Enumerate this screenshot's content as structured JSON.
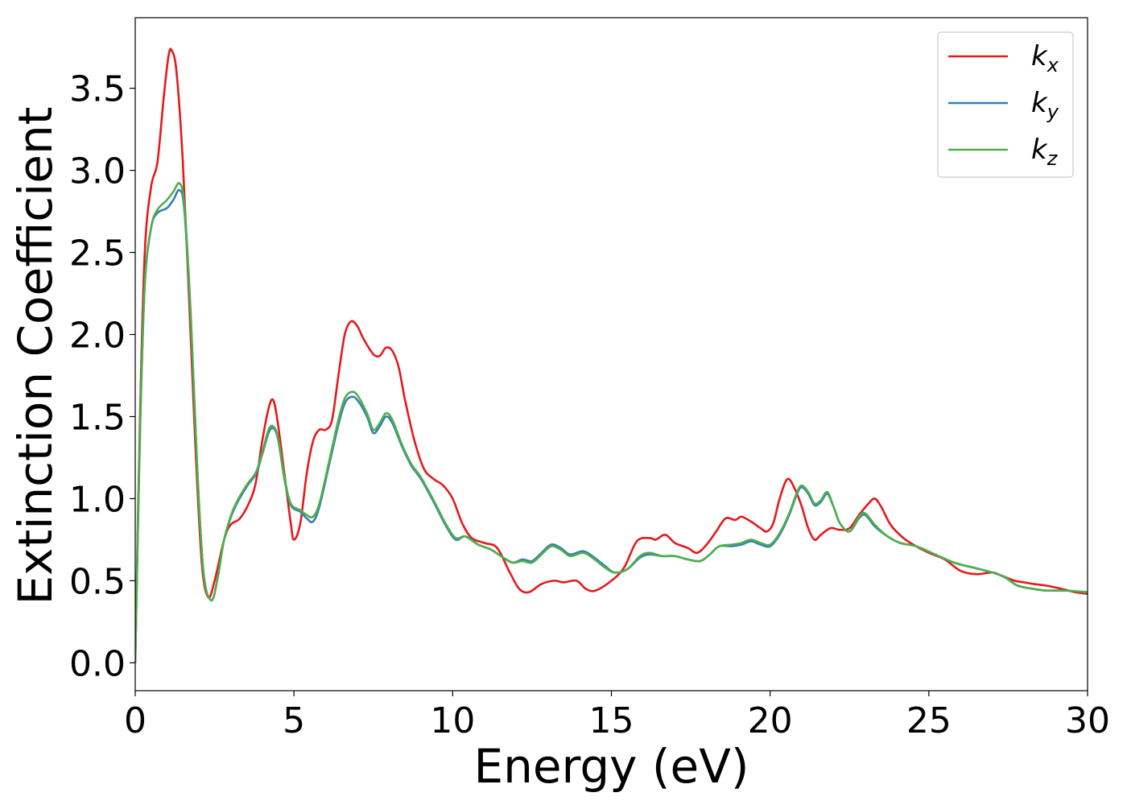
{
  "chart_data": {
    "type": "line",
    "title": "",
    "xlabel": "Energy (eV)",
    "ylabel": "Extinction Coefficient",
    "xlim": [
      0,
      30
    ],
    "ylim": [
      -0.17,
      3.93
    ],
    "xticks": [
      0,
      5,
      10,
      15,
      20,
      25,
      30
    ],
    "xtick_labels": [
      "0",
      "5",
      "10",
      "15",
      "20",
      "25",
      "30"
    ],
    "yticks": [
      0.0,
      0.5,
      1.0,
      1.5,
      2.0,
      2.5,
      3.0,
      3.5
    ],
    "ytick_labels": [
      "0.0",
      "0.5",
      "1.0",
      "1.5",
      "2.0",
      "2.5",
      "3.0",
      "3.5"
    ],
    "grid": false,
    "legend_position": "top-right",
    "series": [
      {
        "name": "kx",
        "label_base": "k",
        "label_sub": "x",
        "color": "#e41a1c",
        "points": [
          [
            0,
            0.0
          ],
          [
            0.15,
            1.5
          ],
          [
            0.3,
            2.5
          ],
          [
            0.5,
            2.9
          ],
          [
            0.7,
            3.05
          ],
          [
            0.9,
            3.45
          ],
          [
            1.05,
            3.7
          ],
          [
            1.15,
            3.73
          ],
          [
            1.3,
            3.6
          ],
          [
            1.5,
            3.05
          ],
          [
            1.7,
            2.2
          ],
          [
            1.9,
            1.3
          ],
          [
            2.1,
            0.6
          ],
          [
            2.3,
            0.4
          ],
          [
            2.5,
            0.5
          ],
          [
            2.8,
            0.75
          ],
          [
            3.0,
            0.84
          ],
          [
            3.3,
            0.88
          ],
          [
            3.6,
            0.98
          ],
          [
            3.8,
            1.1
          ],
          [
            4.0,
            1.35
          ],
          [
            4.2,
            1.55
          ],
          [
            4.35,
            1.6
          ],
          [
            4.5,
            1.45
          ],
          [
            4.7,
            1.15
          ],
          [
            4.9,
            0.85
          ],
          [
            5.0,
            0.75
          ],
          [
            5.2,
            0.85
          ],
          [
            5.4,
            1.15
          ],
          [
            5.6,
            1.35
          ],
          [
            5.8,
            1.42
          ],
          [
            6.0,
            1.42
          ],
          [
            6.2,
            1.48
          ],
          [
            6.4,
            1.75
          ],
          [
            6.6,
            2.0
          ],
          [
            6.8,
            2.08
          ],
          [
            7.0,
            2.05
          ],
          [
            7.2,
            1.97
          ],
          [
            7.5,
            1.88
          ],
          [
            7.7,
            1.87
          ],
          [
            7.9,
            1.92
          ],
          [
            8.1,
            1.9
          ],
          [
            8.3,
            1.8
          ],
          [
            8.5,
            1.6
          ],
          [
            8.8,
            1.35
          ],
          [
            9.1,
            1.18
          ],
          [
            9.4,
            1.12
          ],
          [
            9.7,
            1.08
          ],
          [
            10.0,
            1.0
          ],
          [
            10.3,
            0.85
          ],
          [
            10.6,
            0.76
          ],
          [
            11.0,
            0.73
          ],
          [
            11.4,
            0.7
          ],
          [
            11.8,
            0.55
          ],
          [
            12.1,
            0.45
          ],
          [
            12.4,
            0.43
          ],
          [
            12.8,
            0.48
          ],
          [
            13.2,
            0.5
          ],
          [
            13.5,
            0.49
          ],
          [
            13.9,
            0.5
          ],
          [
            14.2,
            0.45
          ],
          [
            14.5,
            0.44
          ],
          [
            15.0,
            0.5
          ],
          [
            15.4,
            0.58
          ],
          [
            15.8,
            0.74
          ],
          [
            16.2,
            0.76
          ],
          [
            16.4,
            0.75
          ],
          [
            16.7,
            0.78
          ],
          [
            17.0,
            0.73
          ],
          [
            17.4,
            0.7
          ],
          [
            17.7,
            0.67
          ],
          [
            18.0,
            0.72
          ],
          [
            18.3,
            0.8
          ],
          [
            18.6,
            0.88
          ],
          [
            18.9,
            0.87
          ],
          [
            19.1,
            0.89
          ],
          [
            19.4,
            0.86
          ],
          [
            19.7,
            0.82
          ],
          [
            19.9,
            0.8
          ],
          [
            20.1,
            0.85
          ],
          [
            20.3,
            1.0
          ],
          [
            20.55,
            1.12
          ],
          [
            20.8,
            1.05
          ],
          [
            21.0,
            0.95
          ],
          [
            21.2,
            0.82
          ],
          [
            21.4,
            0.75
          ],
          [
            21.6,
            0.78
          ],
          [
            21.9,
            0.82
          ],
          [
            22.2,
            0.81
          ],
          [
            22.5,
            0.82
          ],
          [
            22.8,
            0.9
          ],
          [
            23.1,
            0.97
          ],
          [
            23.3,
            1.0
          ],
          [
            23.5,
            0.95
          ],
          [
            23.8,
            0.84
          ],
          [
            24.2,
            0.76
          ],
          [
            24.6,
            0.71
          ],
          [
            25.0,
            0.67
          ],
          [
            25.5,
            0.63
          ],
          [
            26.0,
            0.56
          ],
          [
            26.5,
            0.54
          ],
          [
            27.0,
            0.55
          ],
          [
            27.3,
            0.53
          ],
          [
            27.7,
            0.5
          ],
          [
            28.0,
            0.49
          ],
          [
            28.3,
            0.48
          ],
          [
            28.7,
            0.47
          ],
          [
            29.2,
            0.45
          ],
          [
            29.6,
            0.43
          ],
          [
            30.0,
            0.42
          ]
        ]
      },
      {
        "name": "ky",
        "label_base": "k",
        "label_sub": "y",
        "color": "#377eb8",
        "points": [
          [
            0,
            0.0
          ],
          [
            0.15,
            1.4
          ],
          [
            0.3,
            2.3
          ],
          [
            0.5,
            2.65
          ],
          [
            0.7,
            2.74
          ],
          [
            1.0,
            2.77
          ],
          [
            1.2,
            2.82
          ],
          [
            1.4,
            2.88
          ],
          [
            1.55,
            2.75
          ],
          [
            1.75,
            2.1
          ],
          [
            1.95,
            1.2
          ],
          [
            2.15,
            0.55
          ],
          [
            2.4,
            0.38
          ],
          [
            2.6,
            0.52
          ],
          [
            2.8,
            0.75
          ],
          [
            3.1,
            0.93
          ],
          [
            3.5,
            1.07
          ],
          [
            3.8,
            1.15
          ],
          [
            4.0,
            1.27
          ],
          [
            4.2,
            1.4
          ],
          [
            4.35,
            1.43
          ],
          [
            4.5,
            1.36
          ],
          [
            4.7,
            1.12
          ],
          [
            4.9,
            0.96
          ],
          [
            5.2,
            0.92
          ],
          [
            5.4,
            0.88
          ],
          [
            5.6,
            0.86
          ],
          [
            5.8,
            0.95
          ],
          [
            6.1,
            1.2
          ],
          [
            6.4,
            1.45
          ],
          [
            6.6,
            1.58
          ],
          [
            6.8,
            1.62
          ],
          [
            7.0,
            1.6
          ],
          [
            7.3,
            1.5
          ],
          [
            7.5,
            1.4
          ],
          [
            7.7,
            1.44
          ],
          [
            7.9,
            1.5
          ],
          [
            8.1,
            1.46
          ],
          [
            8.4,
            1.32
          ],
          [
            8.7,
            1.2
          ],
          [
            9.0,
            1.12
          ],
          [
            9.4,
            0.98
          ],
          [
            9.8,
            0.83
          ],
          [
            10.1,
            0.75
          ],
          [
            10.4,
            0.77
          ],
          [
            10.8,
            0.72
          ],
          [
            11.2,
            0.69
          ],
          [
            11.6,
            0.64
          ],
          [
            11.9,
            0.61
          ],
          [
            12.2,
            0.63
          ],
          [
            12.5,
            0.62
          ],
          [
            12.8,
            0.67
          ],
          [
            13.1,
            0.72
          ],
          [
            13.4,
            0.7
          ],
          [
            13.7,
            0.66
          ],
          [
            14.1,
            0.68
          ],
          [
            14.4,
            0.65
          ],
          [
            14.8,
            0.59
          ],
          [
            15.1,
            0.55
          ],
          [
            15.5,
            0.57
          ],
          [
            15.9,
            0.64
          ],
          [
            16.2,
            0.66
          ],
          [
            16.6,
            0.65
          ],
          [
            17.0,
            0.65
          ],
          [
            17.4,
            0.63
          ],
          [
            17.8,
            0.62
          ],
          [
            18.1,
            0.66
          ],
          [
            18.4,
            0.71
          ],
          [
            18.8,
            0.71
          ],
          [
            19.1,
            0.72
          ],
          [
            19.4,
            0.74
          ],
          [
            19.7,
            0.72
          ],
          [
            20.0,
            0.71
          ],
          [
            20.3,
            0.78
          ],
          [
            20.6,
            0.9
          ],
          [
            20.85,
            1.03
          ],
          [
            21.0,
            1.07
          ],
          [
            21.2,
            1.03
          ],
          [
            21.4,
            0.96
          ],
          [
            21.6,
            0.98
          ],
          [
            21.8,
            1.03
          ],
          [
            22.0,
            0.95
          ],
          [
            22.2,
            0.85
          ],
          [
            22.5,
            0.8
          ],
          [
            22.8,
            0.88
          ],
          [
            23.0,
            0.9
          ],
          [
            23.3,
            0.83
          ],
          [
            23.7,
            0.77
          ],
          [
            24.1,
            0.73
          ],
          [
            24.6,
            0.71
          ],
          [
            25.2,
            0.66
          ],
          [
            25.8,
            0.61
          ],
          [
            26.4,
            0.58
          ],
          [
            27.0,
            0.55
          ],
          [
            27.4,
            0.52
          ],
          [
            27.8,
            0.47
          ],
          [
            28.3,
            0.45
          ],
          [
            28.7,
            0.44
          ],
          [
            29.3,
            0.44
          ],
          [
            30.0,
            0.43
          ]
        ]
      },
      {
        "name": "kz",
        "label_base": "k",
        "label_sub": "z",
        "color": "#4daf4a",
        "points": [
          [
            0,
            0.0
          ],
          [
            0.15,
            1.4
          ],
          [
            0.3,
            2.3
          ],
          [
            0.5,
            2.65
          ],
          [
            0.7,
            2.76
          ],
          [
            1.0,
            2.82
          ],
          [
            1.2,
            2.87
          ],
          [
            1.4,
            2.92
          ],
          [
            1.55,
            2.78
          ],
          [
            1.75,
            2.12
          ],
          [
            1.95,
            1.2
          ],
          [
            2.15,
            0.55
          ],
          [
            2.4,
            0.38
          ],
          [
            2.6,
            0.52
          ],
          [
            2.8,
            0.75
          ],
          [
            3.1,
            0.94
          ],
          [
            3.5,
            1.08
          ],
          [
            3.8,
            1.16
          ],
          [
            4.0,
            1.28
          ],
          [
            4.2,
            1.42
          ],
          [
            4.35,
            1.44
          ],
          [
            4.5,
            1.37
          ],
          [
            4.7,
            1.13
          ],
          [
            4.9,
            0.97
          ],
          [
            5.2,
            0.93
          ],
          [
            5.4,
            0.9
          ],
          [
            5.6,
            0.89
          ],
          [
            5.8,
            0.97
          ],
          [
            6.1,
            1.22
          ],
          [
            6.4,
            1.48
          ],
          [
            6.6,
            1.61
          ],
          [
            6.8,
            1.65
          ],
          [
            7.0,
            1.63
          ],
          [
            7.3,
            1.52
          ],
          [
            7.5,
            1.42
          ],
          [
            7.7,
            1.46
          ],
          [
            7.9,
            1.52
          ],
          [
            8.1,
            1.48
          ],
          [
            8.4,
            1.33
          ],
          [
            8.7,
            1.21
          ],
          [
            9.0,
            1.13
          ],
          [
            9.4,
            0.99
          ],
          [
            9.8,
            0.84
          ],
          [
            10.1,
            0.76
          ],
          [
            10.4,
            0.77
          ],
          [
            10.8,
            0.72
          ],
          [
            11.2,
            0.69
          ],
          [
            11.6,
            0.64
          ],
          [
            11.9,
            0.61
          ],
          [
            12.2,
            0.62
          ],
          [
            12.5,
            0.61
          ],
          [
            12.8,
            0.66
          ],
          [
            13.1,
            0.71
          ],
          [
            13.4,
            0.69
          ],
          [
            13.7,
            0.65
          ],
          [
            14.1,
            0.67
          ],
          [
            14.4,
            0.64
          ],
          [
            14.8,
            0.58
          ],
          [
            15.1,
            0.55
          ],
          [
            15.5,
            0.57
          ],
          [
            15.9,
            0.65
          ],
          [
            16.2,
            0.67
          ],
          [
            16.6,
            0.65
          ],
          [
            17.0,
            0.65
          ],
          [
            17.4,
            0.63
          ],
          [
            17.8,
            0.62
          ],
          [
            18.1,
            0.66
          ],
          [
            18.4,
            0.71
          ],
          [
            18.8,
            0.72
          ],
          [
            19.1,
            0.73
          ],
          [
            19.4,
            0.75
          ],
          [
            19.7,
            0.73
          ],
          [
            20.0,
            0.72
          ],
          [
            20.3,
            0.79
          ],
          [
            20.6,
            0.91
          ],
          [
            20.85,
            1.04
          ],
          [
            21.0,
            1.08
          ],
          [
            21.2,
            1.04
          ],
          [
            21.4,
            0.97
          ],
          [
            21.6,
            0.99
          ],
          [
            21.8,
            1.04
          ],
          [
            22.0,
            0.95
          ],
          [
            22.2,
            0.85
          ],
          [
            22.5,
            0.8
          ],
          [
            22.8,
            0.89
          ],
          [
            23.0,
            0.91
          ],
          [
            23.3,
            0.84
          ],
          [
            23.7,
            0.77
          ],
          [
            24.1,
            0.73
          ],
          [
            24.6,
            0.71
          ],
          [
            25.2,
            0.66
          ],
          [
            25.8,
            0.61
          ],
          [
            26.4,
            0.58
          ],
          [
            27.0,
            0.55
          ],
          [
            27.4,
            0.52
          ],
          [
            27.8,
            0.47
          ],
          [
            28.3,
            0.45
          ],
          [
            28.7,
            0.44
          ],
          [
            29.3,
            0.44
          ],
          [
            30.0,
            0.43
          ]
        ]
      }
    ]
  }
}
